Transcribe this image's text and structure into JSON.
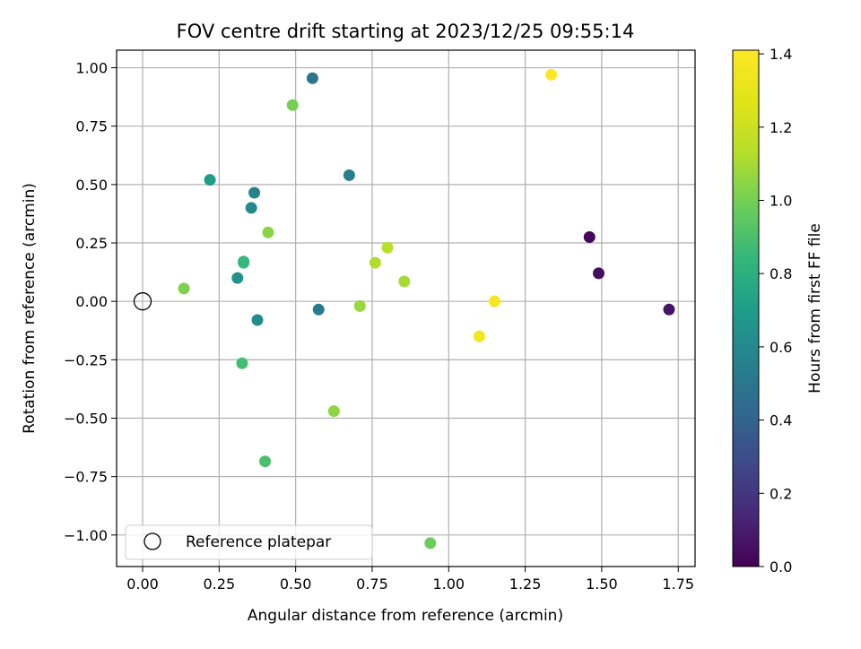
{
  "chart_data": {
    "type": "scatter",
    "title": "FOV centre drift starting at 2023/12/25 09:55:14",
    "xlabel": "Angular distance from reference (arcmin)",
    "ylabel": "Rotation from reference (arcmin)",
    "xlim": [
      -0.085,
      1.805
    ],
    "ylim": [
      -1.135,
      1.075
    ],
    "xticks": [
      0.0,
      0.25,
      0.5,
      0.75,
      1.0,
      1.25,
      1.5,
      1.75
    ],
    "xtick_labels": [
      "0.00",
      "0.25",
      "0.50",
      "0.75",
      "1.00",
      "1.25",
      "1.50",
      "1.75"
    ],
    "yticks": [
      1.0,
      0.75,
      0.5,
      0.25,
      0.0,
      -0.25,
      -0.5,
      -0.75,
      -1.0
    ],
    "ytick_labels": [
      "1.00",
      "0.75",
      "0.50",
      "0.25",
      "0.00",
      "−0.25",
      "−0.50",
      "−0.75",
      "−1.00"
    ],
    "grid": true,
    "colormap": "viridis",
    "colorbar": {
      "label": "Hours from first FF file",
      "range": [
        0.0,
        1.41
      ],
      "ticks": [
        0.0,
        0.2,
        0.4,
        0.6,
        0.8,
        1.0,
        1.2,
        1.4
      ],
      "tick_labels": [
        "0.0",
        "0.2",
        "0.4",
        "0.6",
        "0.8",
        "1.0",
        "1.2",
        "1.4"
      ]
    },
    "reference": {
      "x": 0.0,
      "y": 0.0,
      "label": "Reference platepar"
    },
    "legend_position": "lower-left",
    "points": [
      {
        "x": 1.46,
        "y": 0.275,
        "hours": 0.03
      },
      {
        "x": 1.49,
        "y": 0.12,
        "hours": 0.05
      },
      {
        "x": 1.72,
        "y": -0.035,
        "hours": 0.07
      },
      {
        "x": 0.555,
        "y": 0.955,
        "hours": 0.5
      },
      {
        "x": 0.575,
        "y": -0.035,
        "hours": 0.52
      },
      {
        "x": 0.675,
        "y": 0.54,
        "hours": 0.54
      },
      {
        "x": 0.365,
        "y": 0.465,
        "hours": 0.57
      },
      {
        "x": 0.355,
        "y": 0.4,
        "hours": 0.6
      },
      {
        "x": 0.375,
        "y": -0.08,
        "hours": 0.62
      },
      {
        "x": 0.31,
        "y": 0.1,
        "hours": 0.65
      },
      {
        "x": 0.22,
        "y": 0.52,
        "hours": 0.7
      },
      {
        "x": 0.33,
        "y": 0.17,
        "hours": 0.8
      },
      {
        "x": 0.33,
        "y": 0.165,
        "hours": 0.85
      },
      {
        "x": 0.325,
        "y": -0.265,
        "hours": 0.88
      },
      {
        "x": 0.4,
        "y": -0.685,
        "hours": 0.9
      },
      {
        "x": 0.94,
        "y": -1.035,
        "hours": 0.98
      },
      {
        "x": 0.49,
        "y": 0.84,
        "hours": 1.0
      },
      {
        "x": 0.135,
        "y": 0.055,
        "hours": 1.02
      },
      {
        "x": 0.41,
        "y": 0.295,
        "hours": 1.04
      },
      {
        "x": 0.625,
        "y": -0.47,
        "hours": 1.05
      },
      {
        "x": 0.71,
        "y": -0.02,
        "hours": 1.07
      },
      {
        "x": 0.855,
        "y": 0.085,
        "hours": 1.1
      },
      {
        "x": 0.76,
        "y": 0.165,
        "hours": 1.12
      },
      {
        "x": 0.8,
        "y": 0.23,
        "hours": 1.14
      },
      {
        "x": 1.1,
        "y": -0.15,
        "hours": 1.37
      },
      {
        "x": 1.15,
        "y": 0.0,
        "hours": 1.38
      },
      {
        "x": 1.335,
        "y": 0.97,
        "hours": 1.41
      }
    ]
  }
}
